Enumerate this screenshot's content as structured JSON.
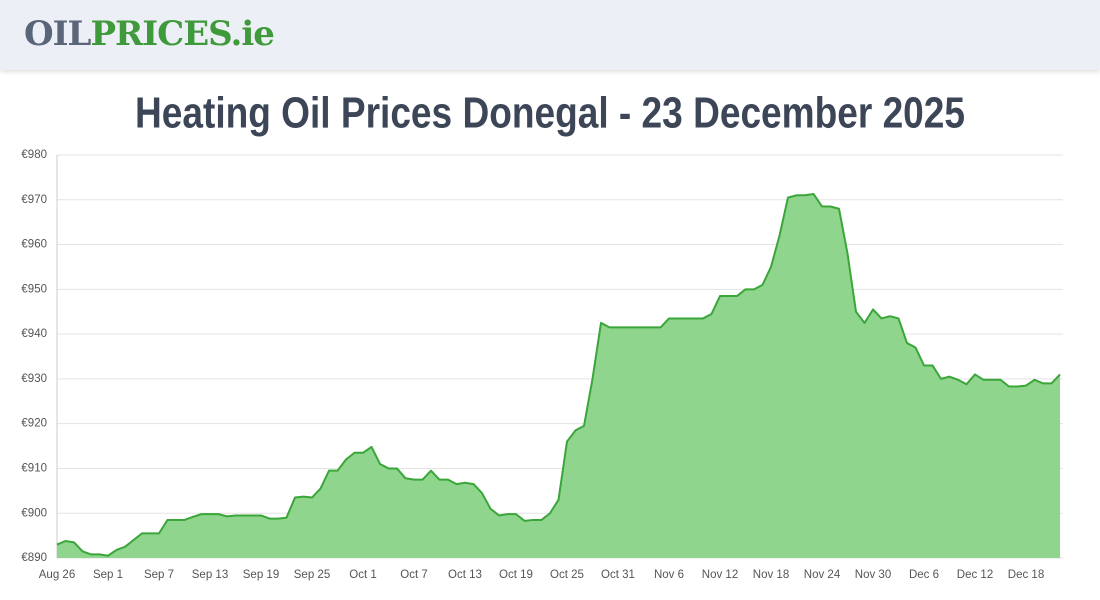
{
  "header": {
    "logo_dark": "OIL",
    "logo_green": "PRICES.ie"
  },
  "chart_data": {
    "type": "area",
    "title": "Heating Oil Prices Donegal - 23 December 2025",
    "categories": [
      "Aug 26",
      null,
      null,
      null,
      null,
      null,
      "Sep 1",
      null,
      null,
      null,
      null,
      null,
      "Sep 7",
      null,
      null,
      null,
      null,
      null,
      "Sep 13",
      null,
      null,
      null,
      null,
      null,
      "Sep 19",
      null,
      null,
      null,
      null,
      null,
      "Sep 25",
      null,
      null,
      null,
      null,
      null,
      "Oct 1",
      null,
      null,
      null,
      null,
      null,
      "Oct 7",
      null,
      null,
      null,
      null,
      null,
      "Oct 13",
      null,
      null,
      null,
      null,
      null,
      "Oct 19",
      null,
      null,
      null,
      null,
      null,
      "Oct 25",
      null,
      null,
      null,
      null,
      null,
      "Oct 31",
      null,
      null,
      null,
      null,
      null,
      "Nov 6",
      null,
      null,
      null,
      null,
      null,
      "Nov 12",
      null,
      null,
      null,
      null,
      null,
      "Nov 18",
      null,
      null,
      null,
      null,
      null,
      "Nov 24",
      null,
      null,
      null,
      null,
      null,
      "Nov 30",
      null,
      null,
      null,
      null,
      null,
      "Dec 6",
      null,
      null,
      null,
      null,
      null,
      "Dec 12",
      null,
      null,
      null,
      null,
      null,
      "Dec 18",
      null,
      null,
      null,
      null
    ],
    "values": [
      893,
      893.8,
      893.5,
      891.5,
      890.8,
      890.8,
      890.5,
      891.8,
      892.5,
      894,
      895.5,
      895.5,
      895.5,
      898.5,
      898.5,
      898.5,
      899.2,
      899.8,
      899.8,
      899.8,
      899.3,
      899.5,
      899.5,
      899.5,
      899.5,
      898.8,
      898.8,
      899,
      903.5,
      903.7,
      903.5,
      905.5,
      909.5,
      909.5,
      912,
      913.5,
      913.5,
      914.8,
      911,
      910,
      910,
      907.8,
      907.5,
      907.5,
      909.5,
      907.5,
      907.5,
      906.5,
      906.8,
      906.5,
      904.5,
      901,
      899.5,
      899.8,
      899.8,
      898.3,
      898.5,
      898.5,
      900,
      903,
      916,
      918.5,
      919.5,
      930,
      942.5,
      941.5,
      941.5,
      941.5,
      941.5,
      941.5,
      941.5,
      941.5,
      943.5,
      943.5,
      943.5,
      943.5,
      943.5,
      944.5,
      948.5,
      948.5,
      948.5,
      950,
      950,
      951,
      955,
      962,
      970.5,
      971,
      971,
      971.3,
      968.5,
      968.5,
      968,
      958,
      945,
      942.5,
      945.5,
      943.5,
      944,
      943.5,
      938,
      937,
      933,
      933,
      930,
      930.5,
      929.8,
      928.8,
      931,
      929.8,
      929.8,
      929.8,
      928.3,
      928.3,
      928.5,
      929.8,
      929,
      929,
      931
    ],
    "color": "#3aa63a",
    "fill_color": "#90d58d",
    "ylim": [
      890,
      980
    ],
    "yticks": [
      {
        "value": 890,
        "label": "€890"
      },
      {
        "value": 900,
        "label": "€900"
      },
      {
        "value": 910,
        "label": "€910"
      },
      {
        "value": 920,
        "label": "€920"
      },
      {
        "value": 930,
        "label": "€930"
      },
      {
        "value": 940,
        "label": "€940"
      },
      {
        "value": 950,
        "label": "€950"
      },
      {
        "value": 960,
        "label": "€960"
      },
      {
        "value": 970,
        "label": "€970"
      },
      {
        "value": 980,
        "label": "€980"
      }
    ],
    "grid": true
  }
}
